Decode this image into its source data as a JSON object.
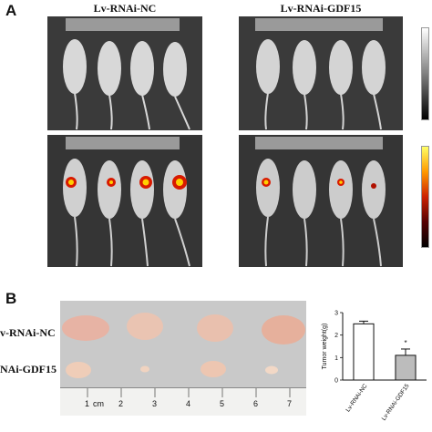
{
  "panel_a": {
    "letter": "A",
    "groups": [
      {
        "title": "Lv-RNAi-NC"
      },
      {
        "title": "Lv-RNAi-GDF15"
      }
    ]
  },
  "panel_b": {
    "letter": "B",
    "rows": [
      {
        "label": "v-RNAi-NC"
      },
      {
        "label": "NAi-GDF15"
      }
    ],
    "ruler": {
      "unit_label": "cm",
      "ticks": [
        "1",
        "2",
        "3",
        "4",
        "5",
        "6",
        "7"
      ]
    }
  },
  "colors": {
    "photo_bg": "#3a3a3a",
    "signal_red": "#d81a00",
    "signal_yellow": "#ffd000",
    "bar_fill_nc": "#ffffff",
    "bar_fill_gdf15": "#bcbcbc"
  },
  "chart_data": {
    "type": "bar",
    "categories": [
      "Lv-RNAi-NC",
      "Lv-RNAi-GDF15"
    ],
    "values": [
      2.5,
      1.1
    ],
    "errors": [
      0.12,
      0.28
    ],
    "ylabel": "Tumor weight(g)",
    "ylim": [
      0,
      3
    ],
    "yticks": [
      "0",
      "1",
      "2",
      "3"
    ],
    "annotation": "*",
    "grid": false,
    "legend": "none"
  }
}
